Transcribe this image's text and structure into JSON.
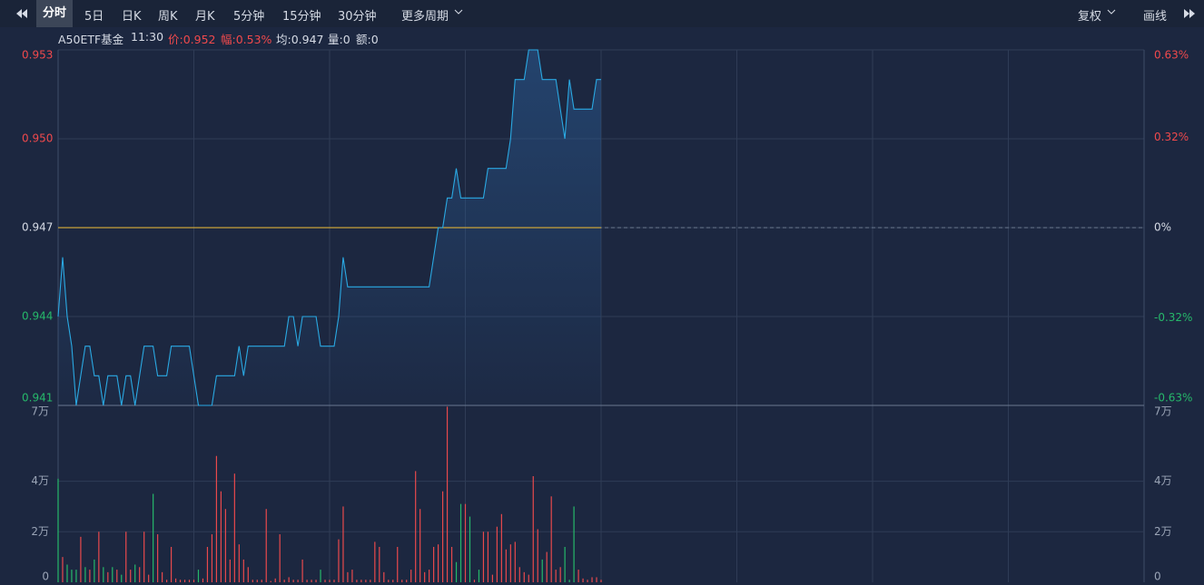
{
  "toolbar": {
    "tabs": [
      "分时",
      "5日",
      "日K",
      "周K",
      "月K",
      "5分钟",
      "15分钟",
      "30分钟"
    ],
    "more": "更多周期",
    "right": [
      "复权",
      "画线"
    ]
  },
  "info": {
    "name": "A50ETF基金",
    "time": "11:30",
    "price": "价:0.952",
    "change": "幅:0.53%",
    "average": "均:0.947",
    "volume": "量:0",
    "amount": "额:0"
  },
  "chart_data": [
    {
      "type": "line",
      "color": "#2aa9e3",
      "xlim": [
        0,
        240
      ],
      "x": [
        0,
        1,
        2,
        3,
        4,
        5,
        6,
        7,
        8,
        9,
        10,
        11,
        12,
        13,
        14,
        15,
        16,
        17,
        18,
        19,
        20,
        21,
        22,
        23,
        24,
        25,
        26,
        27,
        28,
        29,
        30,
        31,
        32,
        33,
        34,
        35,
        36,
        37,
        38,
        39,
        40,
        41,
        42,
        43,
        44,
        45,
        46,
        47,
        48,
        49,
        50,
        51,
        52,
        53,
        54,
        55,
        56,
        57,
        58,
        59,
        60,
        61,
        62,
        63,
        64,
        65,
        66,
        67,
        68,
        69,
        70,
        71,
        72,
        73,
        74,
        75,
        76,
        77,
        78,
        79,
        80,
        81,
        82,
        83,
        84,
        85,
        86,
        87,
        88,
        89,
        90,
        91,
        92,
        93,
        94,
        95,
        96,
        97,
        98,
        99,
        100,
        101,
        102,
        103,
        104,
        105,
        106,
        107,
        108,
        109,
        110,
        111,
        112,
        113,
        114,
        115,
        116,
        117,
        118,
        119,
        120
      ],
      "values": [
        0.944,
        0.946,
        0.944,
        0.943,
        0.941,
        0.942,
        0.943,
        0.943,
        0.942,
        0.942,
        0.941,
        0.942,
        0.942,
        0.942,
        0.941,
        0.942,
        0.942,
        0.941,
        0.942,
        0.943,
        0.943,
        0.943,
        0.942,
        0.942,
        0.942,
        0.943,
        0.943,
        0.943,
        0.943,
        0.943,
        0.942,
        0.941,
        0.941,
        0.941,
        0.941,
        0.942,
        0.942,
        0.942,
        0.942,
        0.942,
        0.943,
        0.942,
        0.943,
        0.943,
        0.943,
        0.943,
        0.943,
        0.943,
        0.943,
        0.943,
        0.943,
        0.944,
        0.944,
        0.943,
        0.944,
        0.944,
        0.944,
        0.944,
        0.943,
        0.943,
        0.943,
        0.943,
        0.944,
        0.946,
        0.945,
        0.945,
        0.945,
        0.945,
        0.945,
        0.945,
        0.945,
        0.945,
        0.945,
        0.945,
        0.945,
        0.945,
        0.945,
        0.945,
        0.945,
        0.945,
        0.945,
        0.945,
        0.945,
        0.946,
        0.947,
        0.947,
        0.948,
        0.948,
        0.949,
        0.948,
        0.948,
        0.948,
        0.948,
        0.948,
        0.948,
        0.949,
        0.949,
        0.949,
        0.949,
        0.949,
        0.95,
        0.952,
        0.952,
        0.952,
        0.953,
        0.953,
        0.953,
        0.952,
        0.952,
        0.952,
        0.952,
        0.951,
        0.95,
        0.952,
        0.951,
        0.951,
        0.951,
        0.951,
        0.951,
        0.952,
        0.952
      ],
      "ylim": [
        0.941,
        0.953
      ],
      "yticks": [
        0.953,
        {
          "value": 0.95,
          "label": "0.950"
        },
        0.947,
        0.944,
        0.941
      ],
      "y2lim": [
        -0.63,
        0.63
      ],
      "y2ticks": [
        {
          "value": 0.63,
          "label": "0.63%"
        },
        {
          "value": 0.32,
          "label": "0.32%"
        },
        {
          "value": 0,
          "label": "0%"
        },
        {
          "value": -0.32,
          "label": "-0.32%"
        },
        {
          "value": -0.63,
          "label": "-0.63%"
        }
      ],
      "grid": true
    },
    {
      "type": "bar",
      "xlim": [
        0,
        240
      ],
      "x": [
        0,
        1,
        2,
        3,
        4,
        5,
        6,
        7,
        8,
        9,
        10,
        11,
        12,
        13,
        14,
        15,
        16,
        17,
        18,
        19,
        20,
        21,
        22,
        23,
        24,
        25,
        26,
        27,
        28,
        29,
        30,
        31,
        32,
        33,
        34,
        35,
        36,
        37,
        38,
        39,
        40,
        41,
        42,
        43,
        44,
        45,
        46,
        47,
        48,
        49,
        50,
        51,
        52,
        53,
        54,
        55,
        56,
        57,
        58,
        59,
        60,
        61,
        62,
        63,
        64,
        65,
        66,
        67,
        68,
        69,
        70,
        71,
        72,
        73,
        74,
        75,
        76,
        77,
        78,
        79,
        80,
        81,
        82,
        83,
        84,
        85,
        86,
        87,
        88,
        89,
        90,
        91,
        92,
        93,
        94,
        95,
        96,
        97,
        98,
        99,
        100,
        101,
        102,
        103,
        104,
        105,
        106,
        107,
        108,
        109,
        110,
        111,
        112,
        113,
        114,
        115,
        116,
        117,
        118,
        119,
        120
      ],
      "values": [
        41000,
        10000,
        7000,
        5000,
        5000,
        18000,
        6000,
        5000,
        9000,
        20000,
        6000,
        4000,
        6000,
        5000,
        3000,
        20000,
        5000,
        7000,
        6000,
        20000,
        3000,
        35000,
        19000,
        4000,
        1000,
        14000,
        1500,
        1000,
        1000,
        1000,
        1000,
        5000,
        1500,
        14000,
        19000,
        50000,
        36000,
        29000,
        9000,
        43000,
        15000,
        9000,
        6000,
        1000,
        1000,
        1000,
        29000,
        500,
        1500,
        19000,
        1000,
        2000,
        1000,
        1000,
        9000,
        1000,
        1000,
        1000,
        5000,
        1000,
        1000,
        1000,
        17000,
        30000,
        4000,
        5000,
        1000,
        1000,
        1000,
        1000,
        16000,
        14000,
        4000,
        1000,
        1000,
        14000,
        1000,
        1000,
        5000,
        44000,
        29000,
        4000,
        5000,
        14000,
        15000,
        36000,
        69500,
        14000,
        8000,
        31000,
        31000,
        26000,
        1000,
        5000,
        20000,
        20000,
        3000,
        22000,
        27000,
        13000,
        15000,
        16000,
        6000,
        4000,
        3000,
        42000,
        21000,
        9000,
        12000,
        34000,
        5000,
        6000,
        14000,
        1000,
        30000,
        5000,
        1500,
        1000,
        2000,
        2000,
        1000
      ],
      "colors": [
        "#26b86a",
        "#e8494c",
        "#26b86a",
        "#26b86a",
        "#26b86a",
        "#e8494c",
        "#26b86a",
        "#e8494c",
        "#26b86a",
        "#e8494c",
        "#26b86a",
        "#e8494c",
        "#26b86a",
        "#e8494c",
        "#26b86a",
        "#e8494c",
        "#e8494c",
        "#26b86a",
        "#e8494c",
        "#e8494c",
        "#e8494c",
        "#26b86a",
        "#e8494c",
        "#e8494c",
        "#e8494c",
        "#e8494c",
        "#e8494c",
        "#e8494c",
        "#e8494c",
        "#e8494c",
        "#e8494c",
        "#26b86a",
        "#e8494c",
        "#e8494c",
        "#e8494c",
        "#e8494c",
        "#e8494c",
        "#e8494c",
        "#e8494c",
        "#e8494c",
        "#e8494c",
        "#e8494c",
        "#e8494c",
        "#e8494c",
        "#e8494c",
        "#e8494c",
        "#e8494c",
        "#e8494c",
        "#e8494c",
        "#e8494c",
        "#e8494c",
        "#e8494c",
        "#e8494c",
        "#e8494c",
        "#e8494c",
        "#e8494c",
        "#e8494c",
        "#e8494c",
        "#26b86a",
        "#e8494c",
        "#e8494c",
        "#e8494c",
        "#e8494c",
        "#e8494c",
        "#e8494c",
        "#e8494c",
        "#e8494c",
        "#e8494c",
        "#e8494c",
        "#e8494c",
        "#e8494c",
        "#e8494c",
        "#e8494c",
        "#e8494c",
        "#e8494c",
        "#e8494c",
        "#e8494c",
        "#e8494c",
        "#e8494c",
        "#e8494c",
        "#e8494c",
        "#e8494c",
        "#e8494c",
        "#e8494c",
        "#e8494c",
        "#e8494c",
        "#e8494c",
        "#e8494c",
        "#26b86a",
        "#26b86a",
        "#e8494c",
        "#26b86a",
        "#e8494c",
        "#26b86a",
        "#e8494c",
        "#e8494c",
        "#e8494c",
        "#e8494c",
        "#e8494c",
        "#e8494c",
        "#e8494c",
        "#e8494c",
        "#e8494c",
        "#e8494c",
        "#e8494c",
        "#e8494c",
        "#e8494c",
        "#26b86a",
        "#e8494c",
        "#e8494c",
        "#e8494c",
        "#e8494c",
        "#26b86a",
        "#26b86a",
        "#26b86a",
        "#e8494c",
        "#e8494c",
        "#e8494c",
        "#e8494c",
        "#e8494c",
        "#e8494c"
      ],
      "ylim": [
        0,
        70000
      ],
      "yticks": [
        {
          "value": 70000,
          "label": "7万"
        },
        {
          "value": 40000,
          "label": "4万"
        },
        {
          "value": 20000,
          "label": "2万"
        },
        0
      ],
      "grid": true
    }
  ]
}
